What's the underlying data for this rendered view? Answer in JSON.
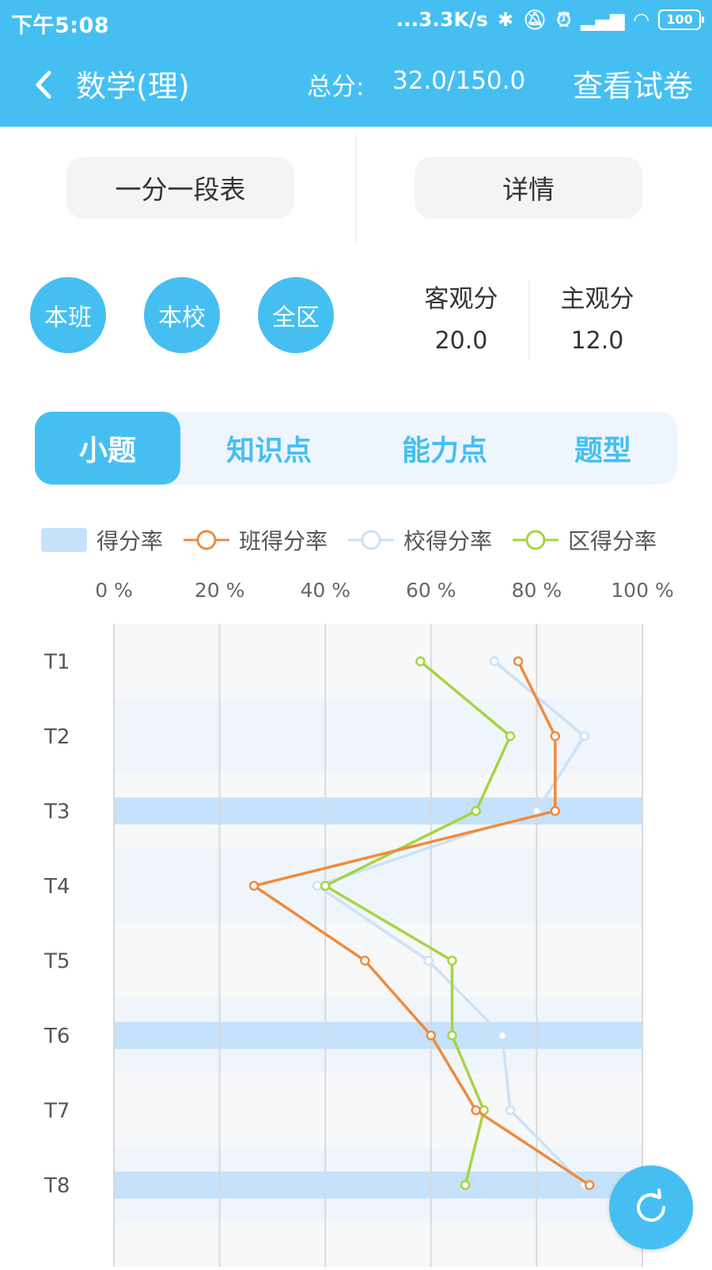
{
  "status_bar": {
    "time": "下午5:08",
    "network_speed": "...3.3K/s",
    "battery": "100",
    "icons": [
      "bluetooth-icon",
      "mute-icon",
      "alarm-icon",
      "signal-hd-icon",
      "wifi-icon",
      "battery-icon"
    ]
  },
  "header": {
    "title": "数学(理)",
    "score_label": "总分:",
    "score_value": "32.0/150.0",
    "view_paper": "查看试卷",
    "back_icon": "chevron-left-icon"
  },
  "buttons": {
    "segment_table": "一分一段表",
    "details": "详情"
  },
  "scopes": [
    "本班",
    "本校",
    "全区"
  ],
  "scores": {
    "objective_label": "客观分",
    "objective_value": "20.0",
    "subjective_label": "主观分",
    "subjective_value": "12.0"
  },
  "tabs": [
    {
      "label": "小题",
      "active": true
    },
    {
      "label": "知识点",
      "active": false
    },
    {
      "label": "能力点",
      "active": false
    },
    {
      "label": "题型",
      "active": false
    }
  ],
  "legend": {
    "score_rate": "得分率",
    "class_rate": "班得分率",
    "school_rate": "校得分率",
    "district_rate": "区得分率"
  },
  "colors": {
    "primary": "#45bff2",
    "bar": "#c5e1fb",
    "class_line": "#f08a3c",
    "school_line": "#c9e2f8",
    "district_line": "#a6d442"
  },
  "chart_data": {
    "type": "line",
    "orientation": "horizontal",
    "x_tick_labels": [
      "0 %",
      "20 %",
      "40 %",
      "60 %",
      "80 %",
      "100 %"
    ],
    "xlim": [
      0,
      100
    ],
    "categories": [
      "T1",
      "T2",
      "T3",
      "T4",
      "T5",
      "T6",
      "T7",
      "T8"
    ],
    "bars": {
      "name": "得分率",
      "values": [
        0,
        0,
        100,
        0,
        0,
        100,
        0,
        100
      ]
    },
    "series": [
      {
        "name": "班得分率",
        "values": [
          76.5,
          83.5,
          83.5,
          26.5,
          47.5,
          60,
          68.5,
          90
        ]
      },
      {
        "name": "校得分率",
        "values": [
          72,
          89,
          80,
          38.5,
          59.5,
          73.5,
          75,
          89
        ]
      },
      {
        "name": "区得分率",
        "values": [
          58,
          75,
          68.5,
          40,
          64,
          64,
          70,
          66.5
        ]
      }
    ],
    "grid": true
  },
  "fab_icon": "refresh-icon"
}
